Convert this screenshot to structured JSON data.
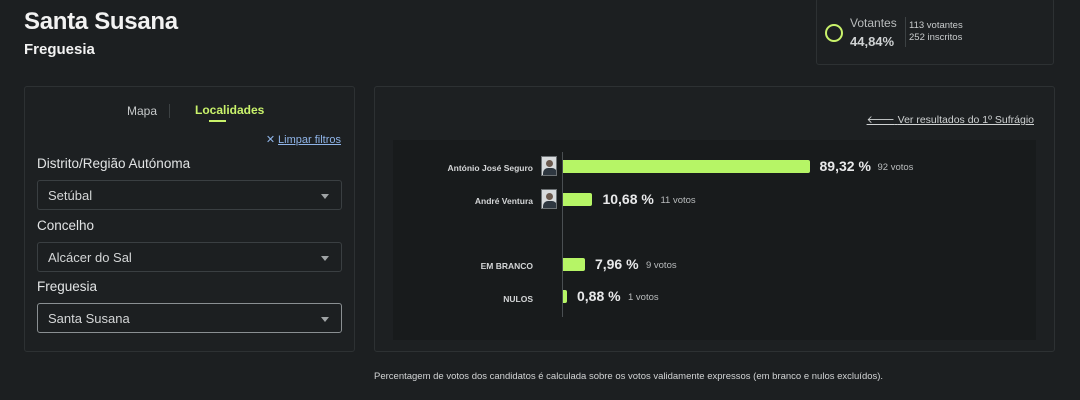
{
  "header": {
    "title": "Santa Susana",
    "subtitle": "Freguesia"
  },
  "turnout": {
    "label": "Votantes",
    "percent": "44,84%",
    "votantes": "113 votantes",
    "inscritos": "252 inscritos",
    "ring_color": "#c9f26b"
  },
  "filters": {
    "tabs": {
      "map": "Mapa",
      "localities": "Localidades"
    },
    "clear_label": "Limpar filtros",
    "fields": [
      {
        "label": "Distrito/Região Autónoma",
        "value": "Setúbal"
      },
      {
        "label": "Concelho",
        "value": "Alcácer do Sal"
      },
      {
        "label": "Freguesia",
        "value": "Santa Susana"
      }
    ]
  },
  "results": {
    "back_label": "Ver resultados do 1º Sufrágio",
    "rows": [
      {
        "name": "António José Seguro",
        "percent_text": "89,32 %",
        "votes_text": "92 votos"
      },
      {
        "name": "André Ventura",
        "percent_text": "10,68 %",
        "votes_text": "11 votos"
      },
      {
        "name": "EM BRANCO",
        "percent_text": "7,96 %",
        "votes_text": "9 votos"
      },
      {
        "name": "NULOS",
        "percent_text": "0,88 %",
        "votes_text": "1 votos"
      }
    ]
  },
  "chart_data": {
    "type": "bar",
    "categories": [
      "António José Seguro",
      "André Ventura",
      "EM BRANCO",
      "NULOS"
    ],
    "values": [
      89.32,
      10.68,
      7.96,
      0.88
    ],
    "votes": [
      92,
      11,
      9,
      1
    ],
    "bar_color": "#b6f566",
    "xlim": [
      0,
      100
    ]
  },
  "footnote": "Percentagem de votos dos candidatos é calculada sobre os votos validamente expressos (em branco e nulos excluídos)."
}
